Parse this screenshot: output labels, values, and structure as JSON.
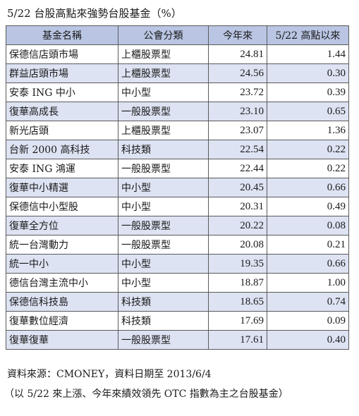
{
  "title": "5/22 台股高點來強勢台股基金（%）",
  "table": {
    "headers": [
      "基金名稱",
      "公會分類",
      "今年來",
      "5/22 高點以來"
    ],
    "rows": [
      {
        "name": "保德信店頭市場",
        "type": "上櫃股票型",
        "ytd": "24.81",
        "since": "1.44"
      },
      {
        "name": "群益店頭市場",
        "type": "上櫃股票型",
        "ytd": "24.56",
        "since": "0.30"
      },
      {
        "name": "安泰 ING 中小",
        "type": "中小型",
        "ytd": "23.72",
        "since": "0.39"
      },
      {
        "name": "復華高成長",
        "type": "一般股票型",
        "ytd": "23.10",
        "since": "0.65"
      },
      {
        "name": "新光店頭",
        "type": "上櫃股票型",
        "ytd": "23.07",
        "since": "1.36"
      },
      {
        "name": "台新 2000 高科技",
        "type": "科技類",
        "ytd": "22.54",
        "since": "0.22"
      },
      {
        "name": "安泰 ING 鴻運",
        "type": "一般股票型",
        "ytd": "22.44",
        "since": "0.22"
      },
      {
        "name": "復華中小精選",
        "type": "中小型",
        "ytd": "20.45",
        "since": "0.66"
      },
      {
        "name": "保德信中小型股",
        "type": "中小型",
        "ytd": "20.31",
        "since": "0.49"
      },
      {
        "name": "復華全方位",
        "type": "一般股票型",
        "ytd": "20.22",
        "since": "0.08"
      },
      {
        "name": "統一台灣動力",
        "type": "一般股票型",
        "ytd": "20.08",
        "since": "0.21"
      },
      {
        "name": "統一中小",
        "type": "中小型",
        "ytd": "19.35",
        "since": "0.66"
      },
      {
        "name": "德信台灣主流中小",
        "type": "中小型",
        "ytd": "18.87",
        "since": "1.00"
      },
      {
        "name": "保德信科技島",
        "type": "科技類",
        "ytd": "18.65",
        "since": "0.74"
      },
      {
        "name": "復華數位經濟",
        "type": "科技類",
        "ytd": "17.69",
        "since": "0.09"
      },
      {
        "name": "復華復華",
        "type": "一般股票型",
        "ytd": "17.61",
        "since": "0.40"
      }
    ]
  },
  "source": "資料來源：CMONEY，資料日期至 2013/6/4",
  "note": "（以 5/22 來上漲、今年來績效領先 OTC 指數為主之台股基金）",
  "colors": {
    "header_bg": "#b9c5e3",
    "stripe_bg": "#dde3f3",
    "border": "#5a5a5a"
  }
}
